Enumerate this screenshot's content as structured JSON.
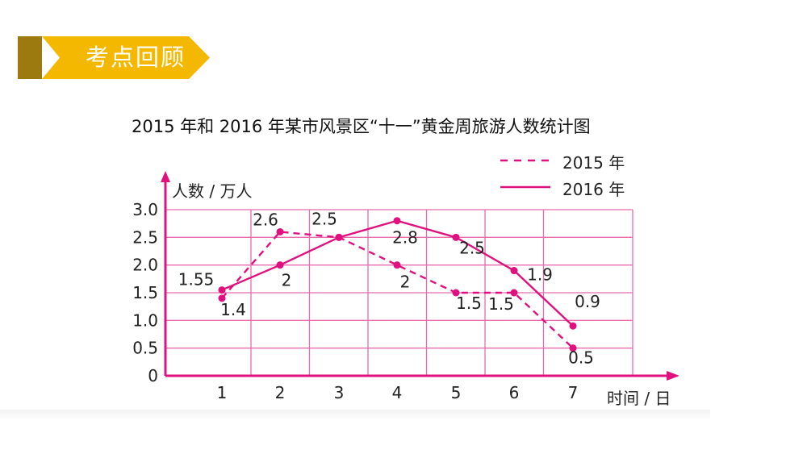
{
  "banner": {
    "title": "考点回顾"
  },
  "chart_data": {
    "type": "line",
    "title": "2015 年和 2016 年某市风景区“十一”黄金周旅游人数统计图",
    "ylabel": "人数 / 万人",
    "xlabel": "时间 / 日",
    "categories": [
      "1",
      "2",
      "3",
      "4",
      "5",
      "6",
      "7"
    ],
    "yticks": [
      "0",
      "0.5",
      "1.0",
      "1.5",
      "2.0",
      "2.5",
      "3.0"
    ],
    "ylim": [
      0,
      3.0
    ],
    "grid": true,
    "legend_position": "top-right",
    "series": [
      {
        "name": "2015 年",
        "style": "dashed",
        "values": [
          1.4,
          2.6,
          2.5,
          2,
          1.5,
          1.5,
          0.5
        ],
        "labels": [
          "1.4",
          "2.6",
          "2.5",
          "2",
          "1.5",
          "1.5",
          "0.5"
        ]
      },
      {
        "name": "2016 年",
        "style": "solid",
        "values": [
          1.55,
          2,
          2.5,
          2.8,
          2.5,
          1.9,
          0.9
        ],
        "labels": [
          "1.55",
          "2",
          "",
          "2.8",
          "2.5",
          "1.9",
          "0.9"
        ]
      }
    ],
    "colors": {
      "line": "#e0107f",
      "grid": "#e86bb0",
      "banner_gold": "#f5b800",
      "banner_dark": "#9c7a10"
    }
  }
}
